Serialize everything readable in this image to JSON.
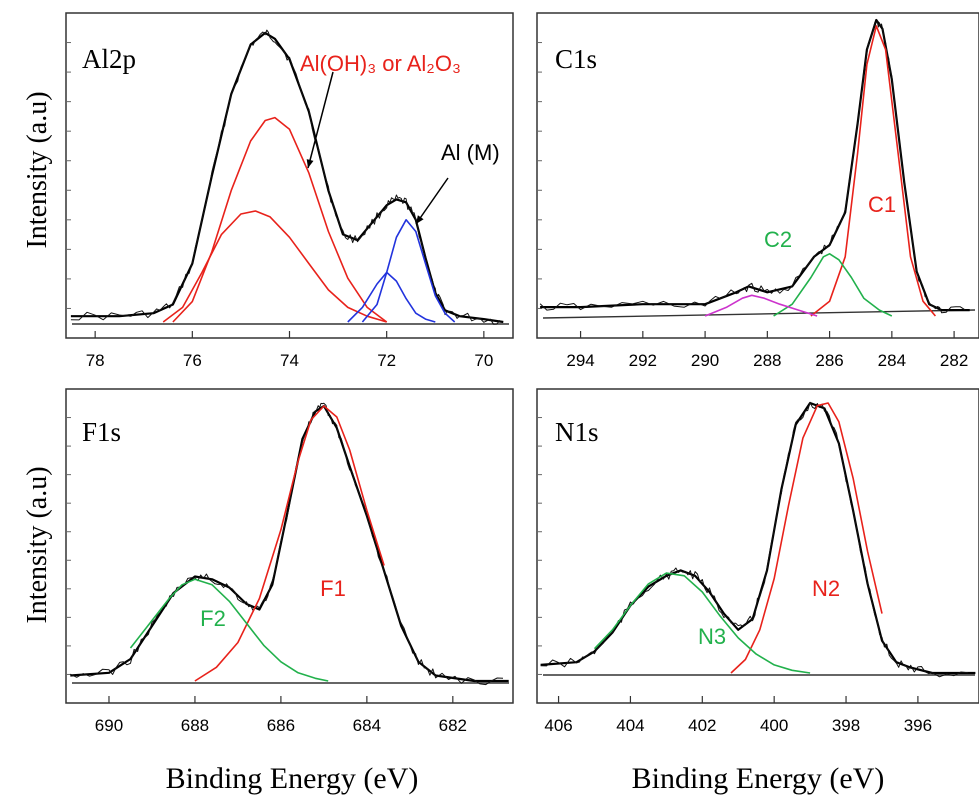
{
  "figure": {
    "ylabel": "Intensity (a.u)",
    "xlabel": "Binding Energy (eV)"
  },
  "chart_data": [
    {
      "type": "line",
      "panel_label": "Al2p",
      "xlim": [
        78.6,
        69.4
      ],
      "xticks": [
        78,
        76,
        74,
        72,
        70
      ],
      "x_reversed": true,
      "annotations": [
        {
          "text": "Al(OH)₃ or Al₂O₃",
          "color": "#e8221b"
        },
        {
          "text": "Al (M)",
          "color": "#000000"
        }
      ],
      "series": [
        {
          "name": "",
          "color": "#000000",
          "x": [
            78.5,
            77.5,
            76.8,
            76.4,
            76.0,
            75.6,
            75.2,
            74.8,
            74.5,
            74.3,
            74.0,
            73.6,
            73.2,
            72.9,
            72.6,
            72.3,
            72.0,
            71.8,
            71.6,
            71.4,
            71.2,
            71.0,
            70.8,
            70.5,
            70.0,
            69.6
          ],
          "y": [
            0.02,
            0.02,
            0.03,
            0.06,
            0.2,
            0.5,
            0.78,
            0.95,
            0.99,
            0.97,
            0.9,
            0.72,
            0.45,
            0.3,
            0.28,
            0.34,
            0.4,
            0.42,
            0.41,
            0.35,
            0.22,
            0.1,
            0.04,
            0.02,
            0.01,
            0.0
          ]
        },
        {
          "name": "",
          "color": "#e8221b",
          "x": [
            76.6,
            76.2,
            75.8,
            75.4,
            75.0,
            74.7,
            74.4,
            74.0,
            73.6,
            73.2,
            72.8,
            72.4,
            72.0
          ],
          "y": [
            0.0,
            0.05,
            0.17,
            0.3,
            0.37,
            0.38,
            0.36,
            0.29,
            0.2,
            0.11,
            0.05,
            0.02,
            0.0
          ]
        },
        {
          "name": "",
          "color": "#e8221b",
          "x": [
            76.4,
            76.0,
            75.6,
            75.2,
            74.8,
            74.5,
            74.3,
            74.0,
            73.6,
            73.2,
            72.8,
            72.4,
            72.0
          ],
          "y": [
            0.0,
            0.07,
            0.24,
            0.45,
            0.62,
            0.69,
            0.7,
            0.66,
            0.51,
            0.31,
            0.15,
            0.05,
            0.0
          ]
        },
        {
          "name": "",
          "color": "#2233dd",
          "x": [
            72.8,
            72.5,
            72.2,
            72.0,
            71.8,
            71.6,
            71.4,
            71.2,
            71.0
          ],
          "y": [
            0.0,
            0.05,
            0.13,
            0.17,
            0.14,
            0.08,
            0.03,
            0.01,
            0.0
          ]
        },
        {
          "name": "",
          "color": "#2233dd",
          "x": [
            72.5,
            72.2,
            72.0,
            71.8,
            71.6,
            71.4,
            71.2,
            71.0,
            70.8,
            70.6
          ],
          "y": [
            0.0,
            0.06,
            0.17,
            0.29,
            0.35,
            0.31,
            0.2,
            0.09,
            0.03,
            0.0
          ]
        }
      ]
    },
    {
      "type": "line",
      "panel_label": "C1s",
      "xlim": [
        295.4,
        281.2
      ],
      "xticks": [
        294,
        292,
        290,
        288,
        286,
        284,
        282
      ],
      "x_reversed": true,
      "annotations": [
        {
          "text": "C2",
          "color": "#22b14c"
        },
        {
          "text": "C1",
          "color": "#e8221b"
        }
      ],
      "series": [
        {
          "name": "",
          "color": "#000000",
          "x": [
            295.3,
            294.0,
            292.0,
            290.0,
            289.0,
            288.6,
            288.0,
            287.2,
            286.5,
            286.0,
            285.5,
            285.1,
            284.8,
            284.5,
            284.3,
            284.0,
            283.6,
            283.2,
            282.8,
            282.4,
            281.5
          ],
          "y": [
            0.03,
            0.03,
            0.04,
            0.04,
            0.08,
            0.1,
            0.08,
            0.1,
            0.2,
            0.24,
            0.35,
            0.65,
            0.9,
            1.0,
            0.97,
            0.8,
            0.45,
            0.15,
            0.04,
            0.02,
            0.02
          ]
        },
        {
          "name": "",
          "color": "#e8221b",
          "x": [
            286.6,
            286.0,
            285.5,
            285.1,
            284.8,
            284.5,
            284.2,
            283.8,
            283.4,
            283.0,
            282.6
          ],
          "y": [
            0.0,
            0.05,
            0.2,
            0.55,
            0.85,
            0.98,
            0.9,
            0.55,
            0.2,
            0.05,
            0.0
          ]
        },
        {
          "name": "",
          "color": "#22b14c",
          "x": [
            287.8,
            287.2,
            286.6,
            286.2,
            286.0,
            285.7,
            285.3,
            284.9,
            284.4,
            284.0
          ],
          "y": [
            0.0,
            0.04,
            0.13,
            0.2,
            0.21,
            0.19,
            0.13,
            0.06,
            0.02,
            0.0
          ]
        },
        {
          "name": "",
          "color": "#cc33cc",
          "x": [
            290.0,
            289.3,
            288.8,
            288.5,
            288.1,
            287.6,
            287.0,
            286.4
          ],
          "y": [
            0.0,
            0.03,
            0.06,
            0.07,
            0.06,
            0.04,
            0.02,
            0.0
          ]
        }
      ]
    },
    {
      "type": "line",
      "panel_label": "F1s",
      "xlim": [
        691.0,
        680.6
      ],
      "xticks": [
        690,
        688,
        686,
        684,
        682
      ],
      "x_reversed": true,
      "annotations": [
        {
          "text": "F2",
          "color": "#22b14c"
        },
        {
          "text": "F1",
          "color": "#e8221b"
        }
      ],
      "series": [
        {
          "name": "",
          "color": "#000000",
          "x": [
            690.9,
            690.0,
            689.5,
            689.0,
            688.5,
            688.0,
            687.6,
            687.2,
            686.8,
            686.5,
            686.2,
            685.8,
            685.5,
            685.2,
            685.0,
            684.7,
            684.4,
            684.0,
            683.6,
            683.2,
            682.8,
            682.4,
            681.5,
            680.7
          ],
          "y": [
            0.02,
            0.03,
            0.08,
            0.2,
            0.32,
            0.38,
            0.37,
            0.34,
            0.28,
            0.26,
            0.35,
            0.65,
            0.88,
            0.98,
            1.0,
            0.92,
            0.78,
            0.6,
            0.4,
            0.2,
            0.07,
            0.02,
            0.0,
            0.0
          ]
        },
        {
          "name": "",
          "color": "#e8221b",
          "x": [
            688.0,
            687.5,
            687.0,
            686.5,
            686.0,
            685.6,
            685.3,
            685.0,
            684.7,
            684.4,
            684.0,
            683.6
          ],
          "y": [
            0.0,
            0.05,
            0.14,
            0.3,
            0.55,
            0.8,
            0.95,
            1.0,
            0.96,
            0.84,
            0.62,
            0.42
          ]
        },
        {
          "name": "",
          "color": "#22b14c",
          "x": [
            689.5,
            689.0,
            688.6,
            688.3,
            688.0,
            687.6,
            687.2,
            686.8,
            686.4,
            686.0,
            685.6,
            685.2,
            684.9
          ],
          "y": [
            0.12,
            0.22,
            0.3,
            0.35,
            0.37,
            0.35,
            0.29,
            0.21,
            0.13,
            0.07,
            0.03,
            0.01,
            0.0
          ]
        }
      ]
    },
    {
      "type": "line",
      "panel_label": "N1s",
      "xlim": [
        406.6,
        394.3
      ],
      "xticks": [
        406,
        404,
        402,
        400,
        398,
        396
      ],
      "x_reversed": true,
      "annotations": [
        {
          "text": "N3",
          "color": "#22b14c"
        },
        {
          "text": "N2",
          "color": "#e8221b"
        }
      ],
      "series": [
        {
          "name": "",
          "color": "#000000",
          "x": [
            406.5,
            405.5,
            405.0,
            404.5,
            404.0,
            403.5,
            403.0,
            402.6,
            402.2,
            401.8,
            401.4,
            401.0,
            400.6,
            400.2,
            399.8,
            399.4,
            399.0,
            398.6,
            398.2,
            397.8,
            397.4,
            397.0,
            396.6,
            396.2,
            395.6,
            394.4
          ],
          "y": [
            0.03,
            0.04,
            0.08,
            0.15,
            0.25,
            0.32,
            0.36,
            0.38,
            0.36,
            0.3,
            0.22,
            0.16,
            0.2,
            0.38,
            0.68,
            0.92,
            1.0,
            0.98,
            0.85,
            0.6,
            0.33,
            0.12,
            0.04,
            0.02,
            0.0,
            0.0
          ]
        },
        {
          "name": "",
          "color": "#e8221b",
          "x": [
            401.2,
            400.8,
            400.4,
            400.0,
            399.6,
            399.2,
            398.8,
            398.5,
            398.2,
            397.8,
            397.4,
            397.0
          ],
          "y": [
            0.0,
            0.05,
            0.16,
            0.35,
            0.62,
            0.87,
            0.99,
            1.0,
            0.93,
            0.72,
            0.45,
            0.22
          ]
        },
        {
          "name": "",
          "color": "#22b14c",
          "x": [
            405.0,
            404.5,
            404.0,
            403.5,
            403.0,
            402.5,
            402.0,
            401.5,
            401.0,
            400.5,
            400.0,
            399.5,
            399.0
          ],
          "y": [
            0.09,
            0.16,
            0.25,
            0.33,
            0.37,
            0.36,
            0.3,
            0.21,
            0.13,
            0.07,
            0.03,
            0.01,
            0.0
          ]
        }
      ]
    }
  ]
}
